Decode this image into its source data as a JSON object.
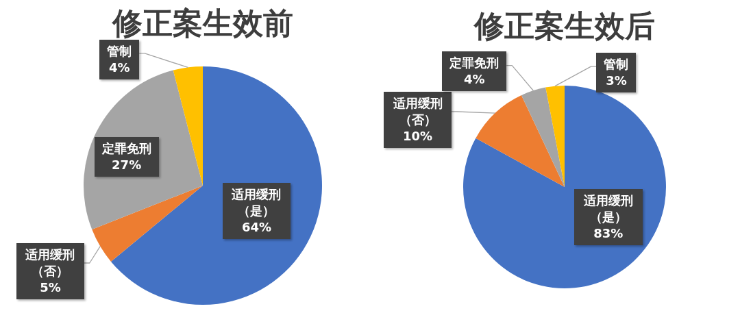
{
  "chart_data": [
    {
      "type": "pie",
      "title": "修正案生效前",
      "categories": [
        "适用缓刑（是）",
        "适用缓刑（否）",
        "定罪免刑",
        "管制"
      ],
      "values": [
        64,
        5,
        27,
        4
      ],
      "colors": [
        "#4472c4",
        "#ed7d31",
        "#a5a5a5",
        "#ffc000"
      ],
      "value_labels": [
        "64%",
        "5%",
        "27%",
        "4%"
      ]
    },
    {
      "type": "pie",
      "title": "修正案生效后",
      "categories": [
        "适用缓刑（是）",
        "适用缓刑（否）",
        "定罪免刑",
        "管制"
      ],
      "values": [
        83,
        10,
        4,
        3
      ],
      "colors": [
        "#4472c4",
        "#ed7d31",
        "#a5a5a5",
        "#ffc000"
      ],
      "value_labels": [
        "83%",
        "10%",
        "4%",
        "3%"
      ]
    }
  ]
}
